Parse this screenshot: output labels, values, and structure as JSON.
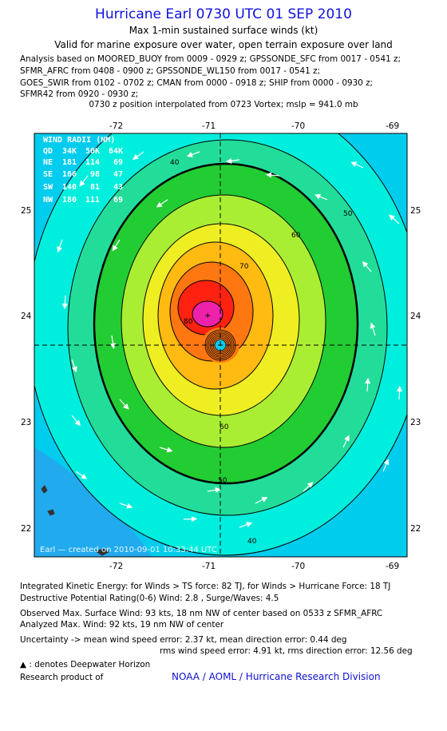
{
  "header": {
    "title": "Hurricane Earl 0730 UTC 01 SEP 2010",
    "subtitle": "Max 1-min sustained surface winds (kt)",
    "validity": "Valid for marine exposure over water, open terrain exposure over land",
    "analysis_lines": [
      "Analysis based on MOORED_BUOY from 0009 - 0929 z; GPSSONDE_SFC from 0017 - 0541 z;",
      "SFMR_AFRC from 0408 - 0900 z; GPSSONDE_WL150 from 0017 - 0541 z;",
      "GOES_SWIR from 0102 - 0702 z; CMAN from 0000 - 0918 z; SHIP from 0000 - 0930 z;",
      "SFMR42 from 0920 - 0930 z;"
    ],
    "position_note": "0730 z position interpolated from 0723 Vortex; mslp = 941.0 mb"
  },
  "map": {
    "lon_ticks": [
      "-72",
      "-71",
      "-70",
      "-69"
    ],
    "lat_ticks": [
      "25",
      "24",
      "23",
      "22"
    ],
    "lon_range": [
      -72.75,
      -68.85
    ],
    "lat_range": [
      21.75,
      25.95
    ],
    "center": {
      "lon": -70.85,
      "lat": 23.73
    },
    "wind_radii": {
      "title": "WIND RADII (NM)",
      "header": [
        "QD",
        "34K",
        "50K",
        "64K"
      ],
      "rows": [
        [
          "NE",
          "181",
          "114",
          "69"
        ],
        [
          "SE",
          "166",
          "98",
          "47"
        ],
        [
          "SW",
          "140",
          "81",
          "43"
        ],
        [
          "NW",
          "180",
          "111",
          "69"
        ]
      ]
    },
    "contour_labels": [
      "40",
      "50",
      "60",
      "70",
      "80",
      "50",
      "60",
      "40"
    ],
    "contour_colors": [
      "#00ccee",
      "#00eedd",
      "#22dd99",
      "#22cc33",
      "#aaee33",
      "#eeee22",
      "#ffbb11",
      "#ff7711",
      "#ff2211",
      "#ee22aa"
    ],
    "footer_stamp": "Earl  —  created  on  2010-09-01  10:33:44  UTC"
  },
  "stats": {
    "ike": "Integrated Kinetic Energy:  for Winds > TS force: 82 TJ,  for Winds > Hurricane Force: 18 TJ",
    "dpr": "Destructive Potential Rating(0-6)   Wind: 2.8 , Surge/Waves: 4.5",
    "observed": "Observed Max. Surface Wind: 93 kts, 18 nm NW of center based on 0533 z SFMR_AFRC",
    "analyzed": "Analyzed Max. Wind: 92 kts, 19 nm NW of center",
    "uncertainty1": "Uncertainty -> mean wind speed error: 2.37 kt,   mean direction error: 0.44 deg",
    "uncertainty2": "rms wind speed error: 4.91 kt,     rms direction error: 12.56 deg",
    "deepwater": ": denotes Deepwater Horizon",
    "research_label": "Research product of",
    "research_org": "NOAA / AOML / Hurricane Research Division"
  }
}
